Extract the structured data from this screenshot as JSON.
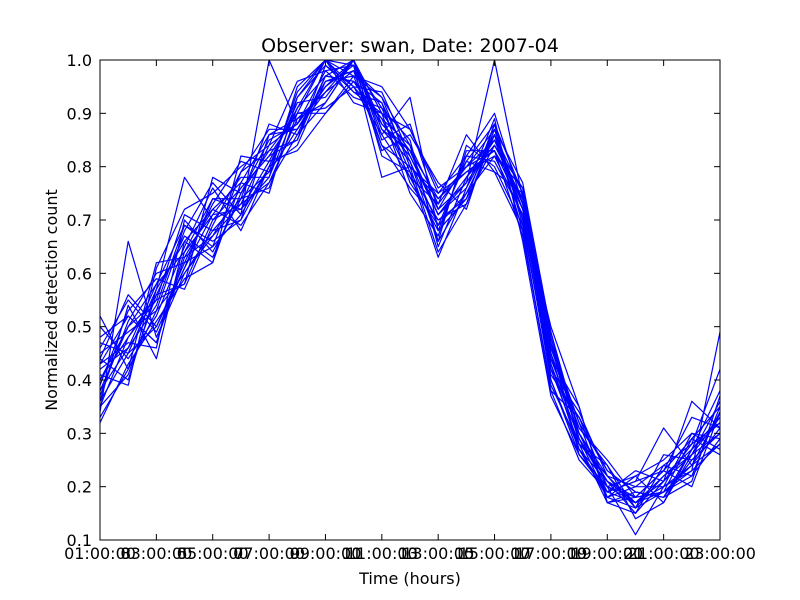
{
  "chart_data": {
    "type": "line",
    "title": "Observer: swan, Date: 2007-04",
    "xlabel": "Time (hours)",
    "ylabel": "Normalized detection count",
    "x_tick_labels": [
      "01:00:00",
      "03:00:00",
      "05:00:00",
      "07:00:00",
      "09:00:00",
      "11:00:00",
      "13:00:00",
      "15:00:00",
      "17:00:00",
      "19:00:00",
      "21:00:00",
      "23:00:00"
    ],
    "x_tick_overlap_labels": [
      "3",
      "5",
      "7",
      "9",
      "11",
      "13",
      "15",
      "17",
      "19",
      "21"
    ],
    "y_ticks": [
      0.1,
      0.2,
      0.3,
      0.4,
      0.5,
      0.6,
      0.7,
      0.8,
      0.9,
      1.0
    ],
    "y_tick_labels": [
      "0.1",
      "0.2",
      "0.3",
      "0.4",
      "0.5",
      "0.6",
      "0.7",
      "0.8",
      "0.9",
      "1.0"
    ],
    "xlim": [
      1,
      23
    ],
    "ylim": [
      0.1,
      1.0
    ],
    "grid": false,
    "line_color": "#0000ff",
    "x_hours": [
      1,
      2,
      3,
      4,
      5,
      6,
      7,
      8,
      9,
      10,
      11,
      12,
      13,
      14,
      15,
      16,
      17,
      18,
      19,
      20,
      21,
      22,
      23
    ],
    "series": [
      {
        "values": [
          0.33,
          0.42,
          0.53,
          0.6,
          0.68,
          0.74,
          0.79,
          0.87,
          0.95,
          1.0,
          0.9,
          0.83,
          0.71,
          0.76,
          0.86,
          0.75,
          0.47,
          0.29,
          0.2,
          0.18,
          0.19,
          0.24,
          0.31
        ]
      },
      {
        "values": [
          0.36,
          0.45,
          0.5,
          0.62,
          0.65,
          0.71,
          0.8,
          0.84,
          0.96,
          0.97,
          0.93,
          0.8,
          0.74,
          0.79,
          0.83,
          0.72,
          0.44,
          0.3,
          0.21,
          0.17,
          0.2,
          0.23,
          0.28
        ]
      },
      {
        "values": [
          0.4,
          0.48,
          0.55,
          0.58,
          0.7,
          0.76,
          0.82,
          0.9,
          1.0,
          0.95,
          0.86,
          0.78,
          0.68,
          0.74,
          0.88,
          0.7,
          0.4,
          0.27,
          0.18,
          0.16,
          0.22,
          0.27,
          0.33
        ]
      },
      {
        "values": [
          0.44,
          0.4,
          0.57,
          0.66,
          0.72,
          0.69,
          0.77,
          0.86,
          0.92,
          1.0,
          0.88,
          0.82,
          0.72,
          0.81,
          0.79,
          0.68,
          0.38,
          0.25,
          0.19,
          0.21,
          0.23,
          0.29,
          0.35
        ]
      },
      {
        "values": [
          0.48,
          0.52,
          0.47,
          0.63,
          0.67,
          0.73,
          0.84,
          0.88,
          0.98,
          0.93,
          0.91,
          0.85,
          0.65,
          0.78,
          0.84,
          0.74,
          0.46,
          0.32,
          0.23,
          0.19,
          0.18,
          0.25,
          0.3
        ]
      },
      {
        "values": [
          0.32,
          0.43,
          0.51,
          0.59,
          0.62,
          0.77,
          0.75,
          0.93,
          1.0,
          0.99,
          0.84,
          0.76,
          0.7,
          0.73,
          0.87,
          0.77,
          0.49,
          0.28,
          0.17,
          0.15,
          0.21,
          0.26,
          0.36
        ]
      },
      {
        "values": [
          0.38,
          0.5,
          0.58,
          0.64,
          0.74,
          0.72,
          0.81,
          0.83,
          0.9,
          0.97,
          0.95,
          0.87,
          0.75,
          0.82,
          0.81,
          0.71,
          0.42,
          0.34,
          0.22,
          0.2,
          0.24,
          0.28,
          0.32
        ]
      },
      {
        "values": [
          0.42,
          0.46,
          0.54,
          0.69,
          0.66,
          0.7,
          0.86,
          0.89,
          0.94,
          1.0,
          0.82,
          0.79,
          0.63,
          0.76,
          0.89,
          0.66,
          0.37,
          0.26,
          0.19,
          0.17,
          0.19,
          0.22,
          0.29
        ]
      },
      {
        "values": [
          0.46,
          0.55,
          0.49,
          0.61,
          0.71,
          0.78,
          0.78,
          0.91,
          0.97,
          0.96,
          0.89,
          0.84,
          0.73,
          0.8,
          0.85,
          0.73,
          0.45,
          0.31,
          0.24,
          0.14,
          0.17,
          0.27,
          0.38
        ]
      },
      {
        "values": [
          0.35,
          0.41,
          0.56,
          0.67,
          0.63,
          0.75,
          0.83,
          0.85,
          0.99,
          0.94,
          0.92,
          0.77,
          0.69,
          0.75,
          0.82,
          0.76,
          0.48,
          0.29,
          0.18,
          0.22,
          0.25,
          0.3,
          0.27
        ]
      },
      {
        "values": [
          0.5,
          0.44,
          0.52,
          0.65,
          0.76,
          0.68,
          0.8,
          0.92,
          0.93,
          1.0,
          0.87,
          0.81,
          0.66,
          0.84,
          0.8,
          0.69,
          0.41,
          0.33,
          0.2,
          0.11,
          0.2,
          0.24,
          0.34
        ]
      },
      {
        "values": [
          0.39,
          0.53,
          0.59,
          0.57,
          0.69,
          0.79,
          0.87,
          0.87,
          0.96,
          0.98,
          0.83,
          0.86,
          0.77,
          0.72,
          0.88,
          0.75,
          0.43,
          0.27,
          0.21,
          0.18,
          0.23,
          0.33,
          0.31
        ]
      },
      {
        "values": [
          0.43,
          0.47,
          0.46,
          0.7,
          0.64,
          0.74,
          0.76,
          0.9,
          0.91,
          0.95,
          0.94,
          0.82,
          0.71,
          0.78,
          0.86,
          0.72,
          0.5,
          0.35,
          0.17,
          0.19,
          0.18,
          0.21,
          0.37
        ]
      },
      {
        "values": [
          0.37,
          0.51,
          0.6,
          0.62,
          0.73,
          0.81,
          0.79,
          0.94,
          1.0,
          0.92,
          0.9,
          0.75,
          0.67,
          0.83,
          0.83,
          0.67,
          0.39,
          0.28,
          0.22,
          0.16,
          0.26,
          0.25,
          0.3
        ]
      },
      {
        "values": [
          0.45,
          0.49,
          0.53,
          0.68,
          0.77,
          0.71,
          1.0,
          0.88,
          0.95,
          1.0,
          0.85,
          0.88,
          0.72,
          0.77,
          1.0,
          0.74,
          0.44,
          0.3,
          0.19,
          0.23,
          0.21,
          0.28,
          0.42
        ]
      },
      {
        "values": [
          0.34,
          0.66,
          0.48,
          0.6,
          0.67,
          0.76,
          0.82,
          0.85,
          0.97,
          0.96,
          0.88,
          0.83,
          0.74,
          0.8,
          0.87,
          0.7,
          0.46,
          0.31,
          0.25,
          0.18,
          0.19,
          0.23,
          0.49
        ]
      },
      {
        "values": [
          0.41,
          0.39,
          0.61,
          0.72,
          0.75,
          0.8,
          0.84,
          0.96,
          0.98,
          0.99,
          0.91,
          0.79,
          0.7,
          0.74,
          0.84,
          0.76,
          0.4,
          0.26,
          0.2,
          0.17,
          0.22,
          0.26,
          0.33
        ]
      },
      {
        "values": [
          0.47,
          0.45,
          0.57,
          0.78,
          0.7,
          0.73,
          0.77,
          0.89,
          0.92,
          1.0,
          0.86,
          0.93,
          0.68,
          0.82,
          0.9,
          0.73,
          0.47,
          0.32,
          0.18,
          0.2,
          0.2,
          0.3,
          0.29
        ]
      },
      {
        "values": [
          0.36,
          0.54,
          0.44,
          0.66,
          0.62,
          0.82,
          0.81,
          0.91,
          1.0,
          0.97,
          0.84,
          0.8,
          0.75,
          0.79,
          0.82,
          0.71,
          0.43,
          0.29,
          0.21,
          0.15,
          0.24,
          0.22,
          0.35
        ]
      },
      {
        "values": [
          0.52,
          0.42,
          0.62,
          0.63,
          0.72,
          0.77,
          0.86,
          0.87,
          0.94,
          0.98,
          0.93,
          0.84,
          0.66,
          0.75,
          0.86,
          0.68,
          0.38,
          0.33,
          0.23,
          0.19,
          0.18,
          0.27,
          0.32
        ]
      },
      {
        "values": [
          0.4,
          0.5,
          0.55,
          0.71,
          0.68,
          0.7,
          0.8,
          0.93,
          0.99,
          0.95,
          0.89,
          0.78,
          0.73,
          0.86,
          0.79,
          0.75,
          0.45,
          0.27,
          0.19,
          0.21,
          0.31,
          0.24,
          0.28
        ]
      },
      {
        "values": [
          0.44,
          0.56,
          0.5,
          0.61,
          0.74,
          0.74,
          0.88,
          0.86,
          0.97,
          1.0,
          0.87,
          0.83,
          0.71,
          0.77,
          0.85,
          0.72,
          0.49,
          0.3,
          0.22,
          0.17,
          0.21,
          0.36,
          0.31
        ]
      },
      {
        "values": [
          0.38,
          0.46,
          0.58,
          0.69,
          0.65,
          0.79,
          0.83,
          0.9,
          0.9,
          0.96,
          0.92,
          0.81,
          0.69,
          0.81,
          0.88,
          0.69,
          0.42,
          0.28,
          0.24,
          0.16,
          0.19,
          0.29,
          0.26
        ]
      },
      {
        "values": [
          0.43,
          0.52,
          0.47,
          0.64,
          0.71,
          0.72,
          0.78,
          0.95,
          1.0,
          0.94,
          0.9,
          0.87,
          0.76,
          0.8,
          0.83,
          0.74,
          0.44,
          0.35,
          0.17,
          0.18,
          0.23,
          0.2,
          0.34
        ]
      },
      {
        "values": [
          0.35,
          0.48,
          0.56,
          0.58,
          0.78,
          0.75,
          0.85,
          0.88,
          0.95,
          0.99,
          0.78,
          0.8,
          0.64,
          0.73,
          0.86,
          0.73,
          0.47,
          0.26,
          0.2,
          0.22,
          0.17,
          0.26,
          0.3
        ]
      }
    ]
  }
}
